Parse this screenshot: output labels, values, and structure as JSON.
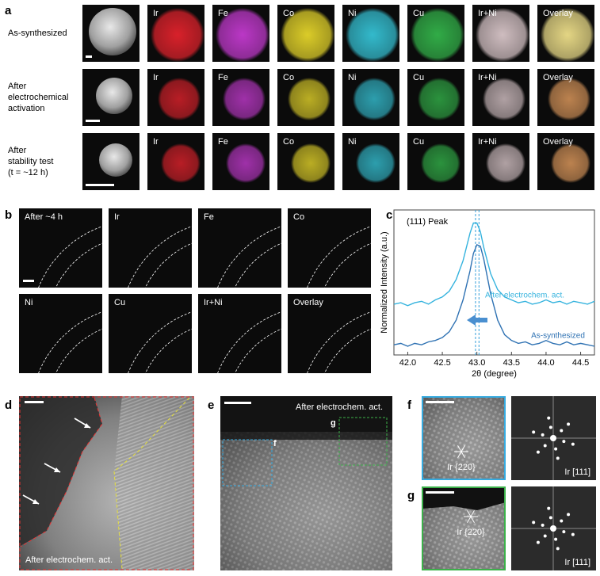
{
  "panel_a": {
    "label": "a",
    "rows": [
      [
        "As-synthesized"
      ],
      [
        "After",
        "electrochemical",
        "activation"
      ],
      [
        "After",
        "stability test",
        "(t = ~12 h)"
      ]
    ],
    "channels": [
      "Ir",
      "Fe",
      "Co",
      "Ni",
      "Cu",
      "Ir+Ni",
      "Overlay"
    ]
  },
  "panel_b": {
    "label": "b",
    "tiles": [
      "After ~4 h",
      "Ir",
      "Fe",
      "Co",
      "Ni",
      "Cu",
      "Ir+Ni",
      "Overlay"
    ]
  },
  "chart_data": {
    "type": "line",
    "panel_label": "c",
    "title": "(111) Peak",
    "x_label": "2θ (degree)",
    "y_label": "Normalized Intensity (a.u.)",
    "x": [
      41.8,
      41.9,
      42.0,
      42.1,
      42.2,
      42.3,
      42.4,
      42.5,
      42.6,
      42.7,
      42.8,
      42.9,
      42.95,
      43.0,
      43.05,
      43.1,
      43.2,
      43.3,
      43.4,
      43.5,
      43.6,
      43.7,
      43.8,
      43.9,
      44.0,
      44.1,
      44.2,
      44.3,
      44.4,
      44.5,
      44.6,
      44.7
    ],
    "series": [
      {
        "name": "After electrochem. act.",
        "color": "#35b3de",
        "values": [
          0.35,
          0.36,
          0.34,
          0.36,
          0.37,
          0.35,
          0.38,
          0.4,
          0.44,
          0.52,
          0.65,
          0.84,
          0.91,
          0.91,
          0.85,
          0.74,
          0.56,
          0.45,
          0.4,
          0.38,
          0.36,
          0.37,
          0.35,
          0.36,
          0.38,
          0.36,
          0.37,
          0.35,
          0.37,
          0.36,
          0.35,
          0.37
        ]
      },
      {
        "name": "As-synthesized",
        "color": "#2f72b3",
        "values": [
          0.07,
          0.08,
          0.06,
          0.08,
          0.07,
          0.09,
          0.1,
          0.12,
          0.16,
          0.24,
          0.38,
          0.58,
          0.7,
          0.76,
          0.75,
          0.66,
          0.42,
          0.24,
          0.14,
          0.1,
          0.08,
          0.09,
          0.07,
          0.08,
          0.1,
          0.08,
          0.07,
          0.09,
          0.07,
          0.08,
          0.07,
          0.06
        ]
      }
    ],
    "reference_lines": [
      42.98,
      43.03
    ],
    "xlim": [
      41.8,
      44.7
    ],
    "ylim": [
      0,
      1
    ],
    "xticks": [
      {
        "value": 42,
        "label": "42.0"
      },
      42.5,
      {
        "value": 43,
        "label": "43.0"
      },
      43.5,
      {
        "value": 44,
        "label": "44.0"
      },
      44.5
    ]
  },
  "panel_d": {
    "label": "d",
    "caption": "After electrochem. act."
  },
  "panel_e": {
    "label": "e",
    "caption": "After electrochem. act.",
    "boxes": [
      "f",
      "g"
    ]
  },
  "panel_f": {
    "label": "f",
    "annotation": "Ir {220}",
    "zone_axis": "Ir [111]"
  },
  "panel_g": {
    "label": "g",
    "annotation": "Ir {220}",
    "zone_axis": "Ir [111]"
  }
}
